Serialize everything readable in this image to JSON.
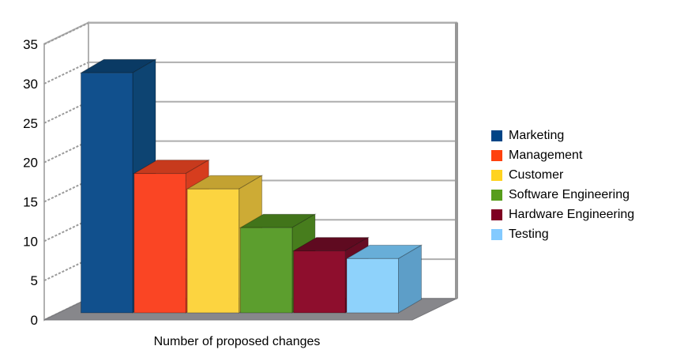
{
  "chart_data": {
    "type": "bar",
    "projection": "3d",
    "title": "",
    "xlabel": "Number of proposed changes",
    "ylabel": "",
    "categories": [
      "Marketing",
      "Management",
      "Customer",
      "Software Engineering",
      "Hardware Engineering",
      "Testing"
    ],
    "values": [
      31,
      18,
      16,
      11,
      8,
      7
    ],
    "ylim": [
      0,
      35
    ],
    "yticks": [
      0,
      5,
      10,
      15,
      20,
      25,
      30,
      35
    ],
    "grid": true,
    "legend_position": "right",
    "series_colors": [
      {
        "name": "Marketing",
        "legend": "#004586",
        "front": "#11508d",
        "top": "#0a3a64",
        "side": "#0d4472"
      },
      {
        "name": "Management",
        "legend": "#ff420e",
        "front": "#fa4524",
        "top": "#c73a1d",
        "side": "#d63d1e"
      },
      {
        "name": "Customer",
        "legend": "#ffd320",
        "front": "#fcd440",
        "top": "#c3a232",
        "side": "#cdab35"
      },
      {
        "name": "Software Engineering",
        "legend": "#579d1c",
        "front": "#5c9e2e",
        "top": "#41741a",
        "side": "#477d1d"
      },
      {
        "name": "Hardware Engineering",
        "legend": "#7e0021",
        "front": "#8e0e2d",
        "top": "#5f0a20",
        "side": "#670b23"
      },
      {
        "name": "Testing",
        "legend": "#83caff",
        "front": "#8ed2fb",
        "top": "#68aed8",
        "side": "#5d9ec8"
      }
    ],
    "style": {
      "background": "#ffffff",
      "wall_color": "#ffffff",
      "wall_edge_color": "#b1b1b1",
      "gridline_color": "#aeaeae",
      "hatch_tick_color": "#9a9a9a",
      "right_edge_color": "#979797",
      "floor_color": "#87878b",
      "floor_edge_color": "#76767a",
      "axis_text_color": "#000000"
    }
  }
}
